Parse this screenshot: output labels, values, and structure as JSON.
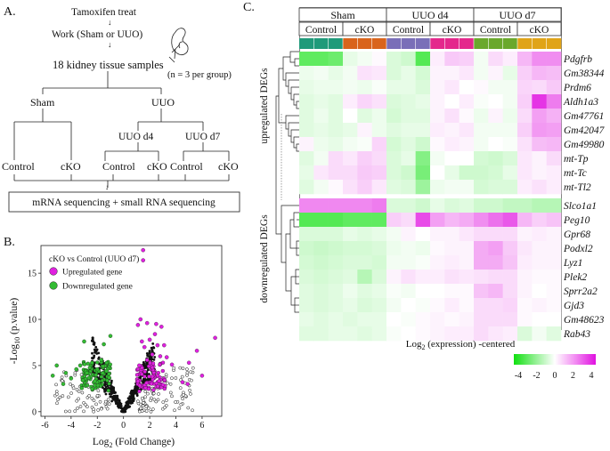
{
  "panelA": {
    "label": "A.",
    "step1": "Tamoxifen treat",
    "step2": "Work (Sham or UUO)",
    "step3": "18 kidney tissue samples",
    "note": "(n = 3 per group)",
    "sham": "Sham",
    "uuo": "UUO",
    "uuo_d4": "UUO d4",
    "uuo_d7": "UUO d7",
    "control": "Control",
    "cko": "cKO",
    "seq": "mRNA sequencing + small RNA sequencing"
  },
  "panelB": {
    "label": "B.",
    "legend_title": "cKO vs Control (UUO d7)",
    "legend_up": "Upregulated gene",
    "legend_down": "Downregulated gene",
    "up_color": "#e020e0",
    "down_color": "#33bb33",
    "ylabel_base": "-Log",
    "ylabel_sub": "10",
    "ylabel_rest": " (p.value)",
    "xlabel_base": "Log",
    "xlabel_sub": "2",
    "xlabel_rest": " (Fold Change)"
  },
  "panelC": {
    "label": "C.",
    "groups": [
      "Sham",
      "UUO d4",
      "UUO d7"
    ],
    "sub_groups": [
      "Control",
      "cKO",
      "Control",
      "cKO",
      "Control",
      "cKO"
    ],
    "up_label": "upregulated DEGs",
    "down_label": "downregulated DEGs",
    "scale_title_base": "Log",
    "scale_title_sub": "2",
    "scale_title_rest": " (expression) -centered",
    "scale_ticks": [
      "-4",
      "-2",
      "0",
      "2",
      "4"
    ],
    "genes_up": [
      "Pdgfrb",
      "Gm38344",
      "Prdm6",
      "Aldh1a3",
      "Gm47761",
      "Gm42047",
      "Gm49980",
      "mt-Tp",
      "mt-Tc",
      "mt-Tl2"
    ],
    "genes_down": [
      "Slco1a1",
      "Peg10",
      "Gpr68",
      "Podxl2",
      "Lyz1",
      "Plek2",
      "Sprr2a2",
      "Gjd3",
      "Gm48623",
      "Rab43"
    ],
    "sample_colors": [
      "#1f9a7a",
      "#1f9a7a",
      "#1f9a7a",
      "#d9641c",
      "#d9641c",
      "#d9641c",
      "#7a6fb8",
      "#7a6fb8",
      "#7a6fb8",
      "#e4288c",
      "#e4288c",
      "#e4288c",
      "#6aa82c",
      "#6aa82c",
      "#6aa82c",
      "#e0a418",
      "#e0a418",
      "#e0a418"
    ],
    "heat_up": [
      [
        -2.6,
        -2.6,
        -2.4,
        -0.4,
        -0.2,
        0.1,
        -0.6,
        -0.8,
        -2.8,
        0.3,
        0.9,
        0.8,
        -0.2,
        0.6,
        0.3,
        1.2,
        1.9,
        1.9
      ],
      [
        -0.3,
        -0.2,
        -0.4,
        -0.2,
        0.5,
        0.4,
        -0.6,
        -0.4,
        -0.7,
        0.2,
        0.2,
        0.4,
        -0.2,
        0.2,
        -0.4,
        0.8,
        1.2,
        1.1
      ],
      [
        -0.4,
        -0.3,
        -0.3,
        -0.2,
        -0.3,
        -0.1,
        -0.4,
        -0.4,
        -0.6,
        0.2,
        0.4,
        0.0,
        0.1,
        -0.2,
        -0.2,
        0.7,
        0.6,
        0.9
      ],
      [
        -0.5,
        -0.4,
        -0.5,
        0.3,
        0.7,
        0.5,
        -0.6,
        -0.5,
        -0.4,
        0.2,
        0.0,
        0.3,
        -0.1,
        0.0,
        -0.2,
        0.8,
        3.4,
        2.2
      ],
      [
        -0.5,
        -0.3,
        -0.5,
        0.0,
        -0.5,
        -0.3,
        -0.7,
        -0.5,
        -0.5,
        0.2,
        0.5,
        0.1,
        -0.3,
        0.2,
        -0.3,
        0.6,
        1.6,
        1.3
      ],
      [
        -0.5,
        -0.4,
        -0.5,
        -0.4,
        0.2,
        -0.3,
        -0.5,
        -0.4,
        -0.4,
        0.3,
        0.2,
        0.4,
        -0.2,
        -0.2,
        -0.2,
        0.8,
        1.7,
        1.6
      ],
      [
        0.2,
        -0.3,
        -0.4,
        -0.2,
        -0.1,
        0.7,
        -0.7,
        -0.5,
        -0.8,
        0.1,
        0.3,
        0.2,
        -0.2,
        0.0,
        -0.1,
        0.5,
        1.1,
        1.2
      ],
      [
        -0.5,
        -0.2,
        0.6,
        0.4,
        0.8,
        0.6,
        -0.6,
        -0.4,
        -2.0,
        -0.2,
        0.0,
        0.0,
        -0.7,
        -0.8,
        -0.6,
        0.4,
        0.2,
        0.6
      ],
      [
        -0.4,
        0.4,
        0.6,
        0.6,
        0.9,
        0.8,
        -0.6,
        -0.8,
        -2.2,
        0.0,
        -0.4,
        -0.8,
        -0.8,
        -0.7,
        -0.4,
        0.4,
        0.2,
        0.3
      ],
      [
        -0.5,
        -0.2,
        0.1,
        0.5,
        0.8,
        0.4,
        -0.5,
        -0.6,
        -1.6,
        -0.3,
        -0.2,
        -0.2,
        -0.7,
        -0.6,
        -0.6,
        0.3,
        0.5,
        0.3
      ]
    ],
    "heat_down": [
      [
        2.0,
        2.0,
        2.0,
        2.0,
        2.0,
        2.2,
        -0.6,
        -0.6,
        -0.8,
        -0.4,
        -0.6,
        -0.5,
        -0.8,
        -0.8,
        -1.0,
        -1.0,
        -1.2,
        -1.2
      ],
      [
        -2.8,
        -2.8,
        -2.8,
        -2.6,
        -2.6,
        -2.6,
        0.8,
        0.6,
        3.0,
        1.6,
        1.2,
        1.4,
        1.9,
        2.4,
        2.8,
        1.2,
        0.8,
        1.0
      ],
      [
        -0.6,
        -0.6,
        -0.6,
        -0.4,
        -0.5,
        -0.4,
        -0.2,
        0.2,
        0.0,
        0.2,
        0.2,
        0.4,
        0.6,
        0.6,
        0.6,
        0.2,
        0.3,
        0.2
      ],
      [
        -0.8,
        -0.9,
        -0.8,
        -0.7,
        -0.7,
        -0.6,
        -0.3,
        -0.2,
        -0.3,
        0.1,
        0.2,
        0.2,
        1.4,
        1.6,
        0.9,
        0.4,
        0.2,
        0.2
      ],
      [
        -0.7,
        -0.8,
        -0.7,
        -0.6,
        -0.6,
        -0.7,
        -0.2,
        -0.2,
        -0.1,
        0.2,
        0.3,
        0.2,
        1.4,
        1.4,
        1.0,
        0.3,
        0.2,
        0.2
      ],
      [
        -0.6,
        -0.7,
        -0.6,
        -0.5,
        -1.2,
        -0.6,
        0.2,
        0.5,
        0.3,
        0.3,
        0.5,
        0.4,
        0.5,
        0.6,
        0.6,
        0.2,
        0.1,
        0.1
      ],
      [
        -0.5,
        -0.6,
        -0.5,
        -0.3,
        -0.5,
        -0.4,
        -0.1,
        -0.2,
        0.0,
        0.0,
        0.1,
        0.1,
        1.0,
        1.2,
        0.6,
        0.2,
        0.0,
        0.1
      ],
      [
        -0.5,
        -0.6,
        -0.5,
        -0.4,
        -0.6,
        -0.5,
        -0.2,
        0.0,
        -0.1,
        0.1,
        0.3,
        0.1,
        0.6,
        0.6,
        0.7,
        0.1,
        0.2,
        0.1
      ],
      [
        -0.4,
        -0.5,
        -0.4,
        -0.5,
        -0.4,
        -0.4,
        0.0,
        -0.1,
        0.1,
        0.2,
        0.1,
        0.2,
        0.6,
        0.6,
        0.6,
        0.1,
        0.0,
        0.0
      ],
      [
        -0.5,
        -0.5,
        -0.4,
        -0.4,
        -0.5,
        -0.4,
        -0.1,
        0.0,
        0.1,
        0.2,
        0.3,
        0.3,
        0.6,
        0.4,
        0.3,
        -0.6,
        -0.2,
        -0.5
      ]
    ]
  },
  "chart_data": {
    "type": "scatter",
    "title": "cKO vs Control (UUO d7)",
    "xlabel": "Log2 (Fold Change)",
    "ylabel": "-Log10 (p.value)",
    "xlim": [
      -6.3,
      7.5
    ],
    "ylim": [
      -0.5,
      18
    ],
    "xticks": [
      -6,
      -4,
      -2,
      0,
      2,
      4,
      6
    ],
    "yticks": [
      0,
      5,
      10,
      15
    ],
    "series": [
      {
        "name": "Upregulated gene",
        "color": "#e020e0",
        "points": [
          [
            1.5,
            17.5
          ],
          [
            1.5,
            16.4
          ],
          [
            1.3,
            10.0
          ],
          [
            1.1,
            9.4
          ],
          [
            1.8,
            9.6
          ],
          [
            2.5,
            9.5
          ],
          [
            2.9,
            9.2
          ],
          [
            3.1,
            7.2
          ],
          [
            2.6,
            7.2
          ],
          [
            1.4,
            7.6
          ],
          [
            1.6,
            7.0
          ],
          [
            2.0,
            7.8
          ],
          [
            2.4,
            8.4
          ],
          [
            3.3,
            5.9
          ],
          [
            3.7,
            5.1
          ],
          [
            5.0,
            5.3
          ],
          [
            5.6,
            6.6
          ],
          [
            7.0,
            8.0
          ],
          [
            6.0,
            3.9
          ],
          [
            4.9,
            3.0
          ],
          [
            4.5,
            3.2
          ],
          [
            2.2,
            6.2
          ],
          [
            1.8,
            5.6
          ],
          [
            2.8,
            6.0
          ],
          [
            1.2,
            5.0
          ]
        ]
      },
      {
        "name": "Downregulated gene",
        "color": "#33bb33",
        "points": [
          [
            -3.0,
            7.6
          ],
          [
            -1.5,
            7.3
          ],
          [
            -1.0,
            8.2
          ],
          [
            -2.4,
            5.3
          ],
          [
            -3.3,
            5.0
          ],
          [
            -5.1,
            5.0
          ],
          [
            -5.4,
            3.9
          ],
          [
            -4.0,
            3.6
          ],
          [
            -4.6,
            3.0
          ],
          [
            -2.0,
            4.6
          ],
          [
            -1.3,
            4.4
          ],
          [
            -1.7,
            5.6
          ],
          [
            -2.8,
            4.2
          ],
          [
            -3.6,
            4.6
          ],
          [
            -1.1,
            3.7
          ],
          [
            -2.2,
            3.3
          ],
          [
            -4.4,
            4.2
          ],
          [
            -3.1,
            3.4
          ]
        ]
      }
    ]
  }
}
